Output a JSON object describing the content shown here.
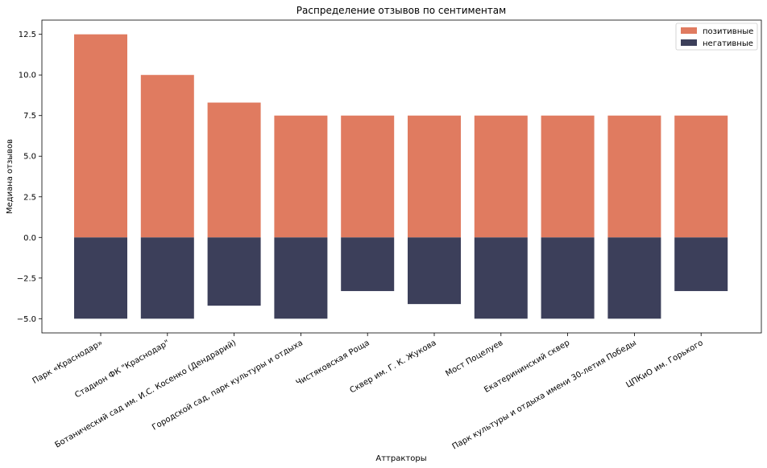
{
  "chart_data": {
    "type": "bar",
    "title": "Распределение отзывов по сентиментам",
    "xlabel": "Аттракторы",
    "ylabel": "Медиана отзывов",
    "ylim": [
      -5.875,
      13.375
    ],
    "yticks": [
      -5.0,
      -2.5,
      0.0,
      2.5,
      5.0,
      7.5,
      10.0,
      12.5
    ],
    "ytick_labels": [
      "−5.0",
      "−2.5",
      "0.0",
      "2.5",
      "5.0",
      "7.5",
      "10.0",
      "12.5"
    ],
    "grid": false,
    "legend_position": "top-right",
    "categories": [
      "Парк «Краснодар»",
      "Стадион ФК \"Краснодар\"",
      "Ботанический сад им. И.С. Косенко (Дендрарий)",
      "Городской сад, парк культуры и отдыха",
      "Чистяковская Роща",
      "Сквер им. Г. К. Жукова",
      "Мост Поцелуев",
      "Екатерининский сквер",
      "Парк культуры и отдыха имени 30-летия Победы",
      "ЦПКиО им. Горького"
    ],
    "series": [
      {
        "name": "позитивные",
        "color": "#e07b60",
        "values": [
          12.5,
          10.0,
          8.3,
          7.5,
          7.5,
          7.5,
          7.5,
          7.5,
          7.5,
          7.5
        ]
      },
      {
        "name": "негативные",
        "color": "#3c3f5a",
        "values": [
          -5.0,
          -5.0,
          -4.2,
          -5.0,
          -3.3,
          -4.1,
          -5.0,
          -5.0,
          -5.0,
          -3.3
        ]
      }
    ]
  }
}
